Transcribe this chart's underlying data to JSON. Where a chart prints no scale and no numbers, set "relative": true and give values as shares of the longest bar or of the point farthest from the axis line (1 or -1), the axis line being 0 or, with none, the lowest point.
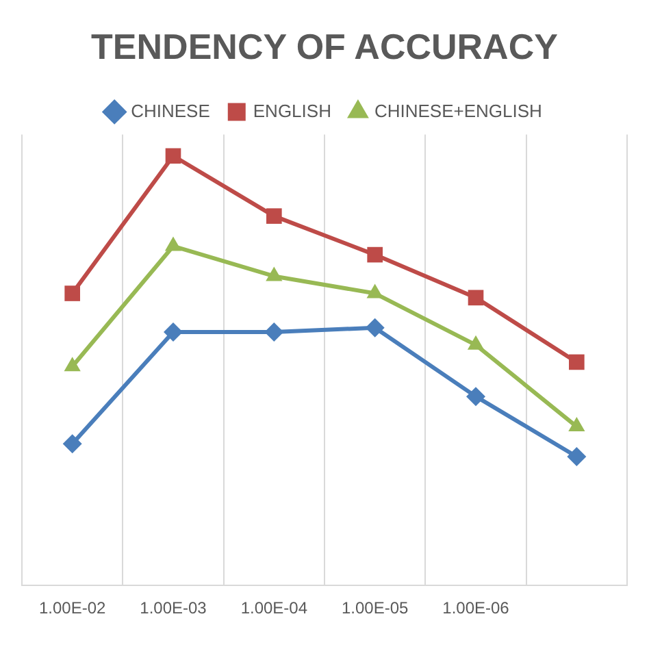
{
  "chart_data": {
    "type": "line",
    "title": "TENDENCY OF ACCURACY",
    "relative": true,
    "categories": [
      "1.00E-02",
      "1.00E-03",
      "1.00E-04",
      "1.00E-05",
      "1.00E-06",
      null
    ],
    "series": [
      {
        "name": "CHINESE",
        "color": "#4a7ebb",
        "marker": "diamond",
        "values": [
          0.33,
          0.59,
          0.59,
          0.6,
          0.44,
          0.3
        ]
      },
      {
        "name": "ENGLISH",
        "color": "#be4b48",
        "marker": "square",
        "values": [
          0.68,
          1,
          0.86,
          0.77,
          0.67,
          0.52
        ]
      },
      {
        "name": "CHINESE+ENGLISH",
        "color": "#98b954",
        "marker": "triangle",
        "values": [
          0.51,
          0.79,
          0.72,
          0.68,
          0.56,
          0.37
        ]
      }
    ],
    "grid": "x",
    "legend": "top",
    "line_style": "solid"
  }
}
